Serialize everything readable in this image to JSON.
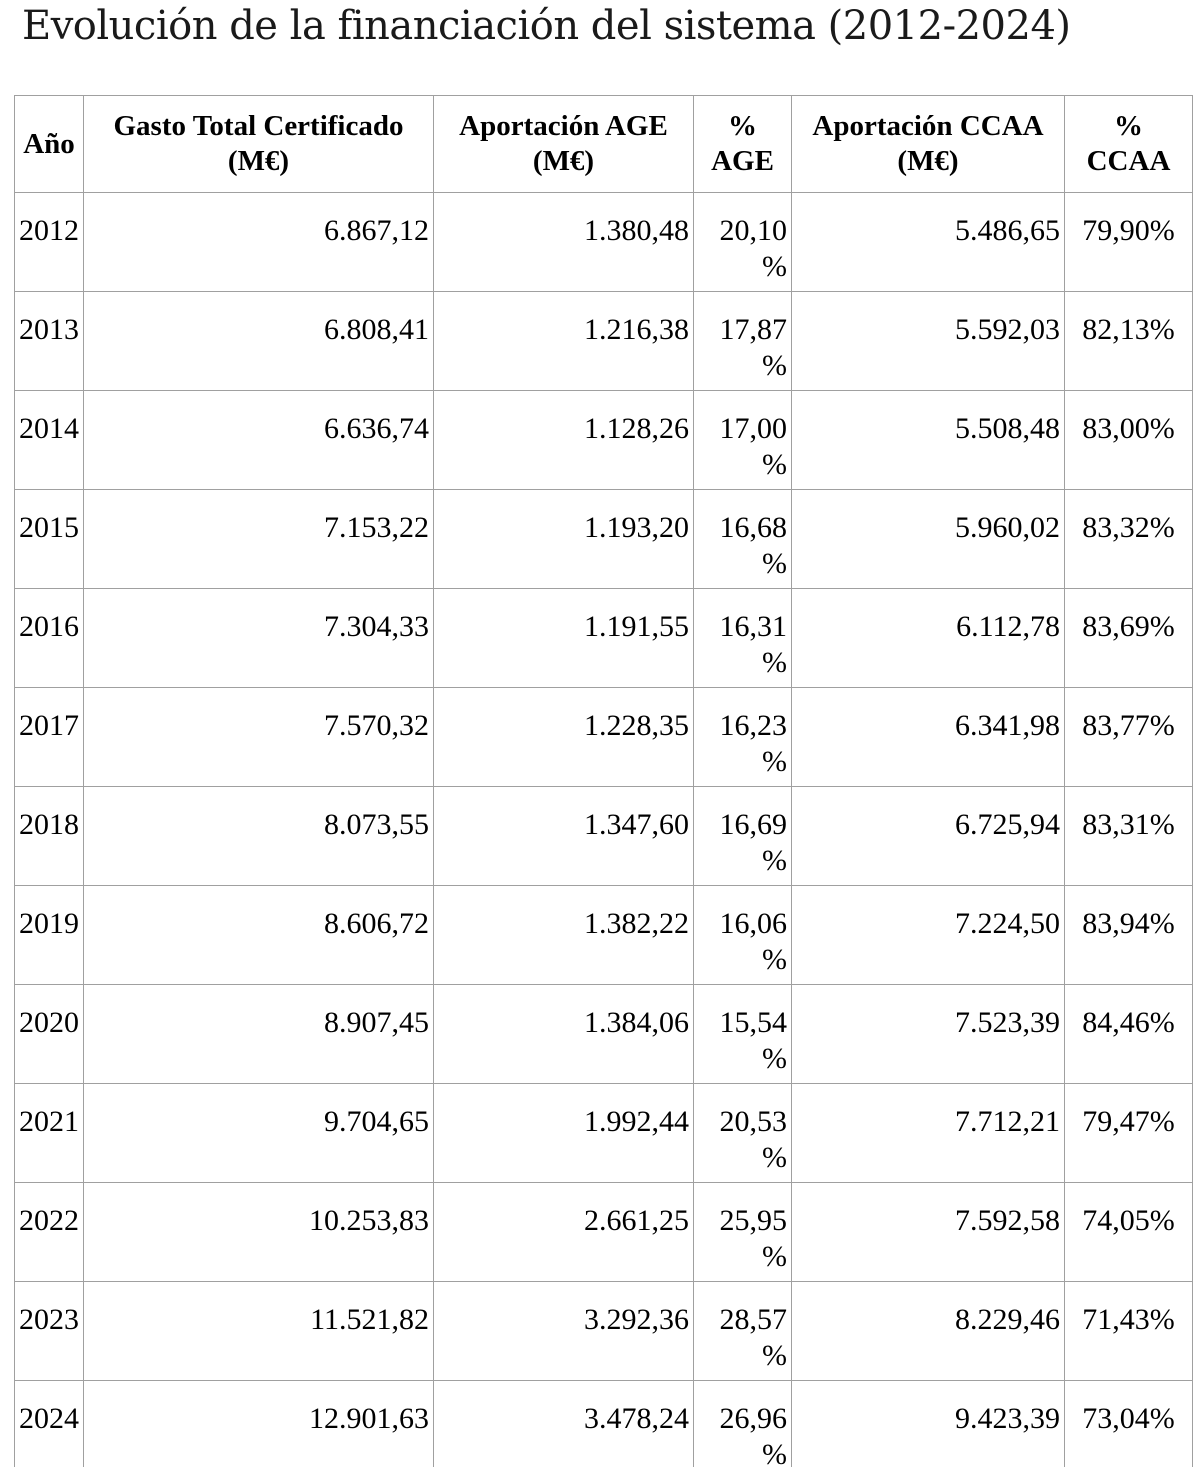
{
  "title": "Evolución de la financiación del sistema (2012-2024)",
  "table": {
    "columns": [
      {
        "key": "year",
        "label": "Año"
      },
      {
        "key": "gasto",
        "label": "Gasto Total Certificado (M€)"
      },
      {
        "key": "age",
        "label": "Aportación AGE (M€)"
      },
      {
        "key": "age_pct",
        "label": "% AGE"
      },
      {
        "key": "ccaa",
        "label": "Aportación CCAA (M€)"
      },
      {
        "key": "ccaa_pct",
        "label": "% CCAA"
      }
    ],
    "rows": [
      {
        "cells": [
          "2012",
          "6.867,12",
          "1.380,48",
          "20,10 %",
          "5.486,65",
          "79,90%"
        ]
      },
      {
        "cells": [
          "2013",
          "6.808,41",
          "1.216,38",
          "17,87 %",
          "5.592,03",
          "82,13%"
        ]
      },
      {
        "cells": [
          "2014",
          "6.636,74",
          "1.128,26",
          "17,00 %",
          "5.508,48",
          "83,00%"
        ]
      },
      {
        "cells": [
          "2015",
          "7.153,22",
          "1.193,20",
          "16,68 %",
          "5.960,02",
          "83,32%"
        ]
      },
      {
        "cells": [
          "2016",
          "7.304,33",
          "1.191,55",
          "16,31 %",
          "6.112,78",
          "83,69%"
        ]
      },
      {
        "cells": [
          "2017",
          "7.570,32",
          "1.228,35",
          "16,23 %",
          "6.341,98",
          "83,77%"
        ]
      },
      {
        "cells": [
          "2018",
          "8.073,55",
          "1.347,60",
          "16,69 %",
          "6.725,94",
          "83,31%"
        ]
      },
      {
        "cells": [
          "2019",
          "8.606,72",
          "1.382,22",
          "16,06 %",
          "7.224,50",
          "83,94%"
        ]
      },
      {
        "cells": [
          "2020",
          "8.907,45",
          "1.384,06",
          "15,54 %",
          "7.523,39",
          "84,46%"
        ]
      },
      {
        "cells": [
          "2021",
          "9.704,65",
          "1.992,44",
          "20,53 %",
          "7.712,21",
          "79,47%"
        ]
      },
      {
        "cells": [
          "2022",
          "10.253,83",
          "2.661,25",
          "25,95 %",
          "7.592,58",
          "74,05%"
        ]
      },
      {
        "cells": [
          "2023",
          "11.521,82",
          "3.292,36",
          "28,57 %",
          "8.229,46",
          "71,43%"
        ]
      },
      {
        "cells": [
          "2024",
          "12.901,63",
          "3.478,24",
          "26,96 %",
          "9.423,39",
          "73,04%"
        ]
      }
    ]
  },
  "chart_data": {
    "type": "table",
    "title": "Evolución de la financiación del sistema (2012-2024)",
    "columns": [
      "Año",
      "Gasto Total Certificado (M€)",
      "Aportación AGE (M€)",
      "% AGE",
      "Aportación CCAA (M€)",
      "% CCAA"
    ],
    "rows": [
      [
        2012,
        6867.12,
        1380.48,
        20.1,
        5486.65,
        79.9
      ],
      [
        2013,
        6808.41,
        1216.38,
        17.87,
        5592.03,
        82.13
      ],
      [
        2014,
        6636.74,
        1128.26,
        17.0,
        5508.48,
        83.0
      ],
      [
        2015,
        7153.22,
        1193.2,
        16.68,
        5960.02,
        83.32
      ],
      [
        2016,
        7304.33,
        1191.55,
        16.31,
        6112.78,
        83.69
      ],
      [
        2017,
        7570.32,
        1228.35,
        16.23,
        6341.98,
        83.77
      ],
      [
        2018,
        8073.55,
        1347.6,
        16.69,
        6725.94,
        83.31
      ],
      [
        2019,
        8606.72,
        1382.22,
        16.06,
        7224.5,
        83.94
      ],
      [
        2020,
        8907.45,
        1384.06,
        15.54,
        7523.39,
        84.46
      ],
      [
        2021,
        9704.65,
        1992.44,
        20.53,
        7712.21,
        79.47
      ],
      [
        2022,
        10253.83,
        2661.25,
        25.95,
        7592.58,
        74.05
      ],
      [
        2023,
        11521.82,
        3292.36,
        28.57,
        8229.46,
        71.43
      ],
      [
        2024,
        12901.63,
        3478.24,
        26.96,
        9423.39,
        73.04
      ]
    ]
  }
}
